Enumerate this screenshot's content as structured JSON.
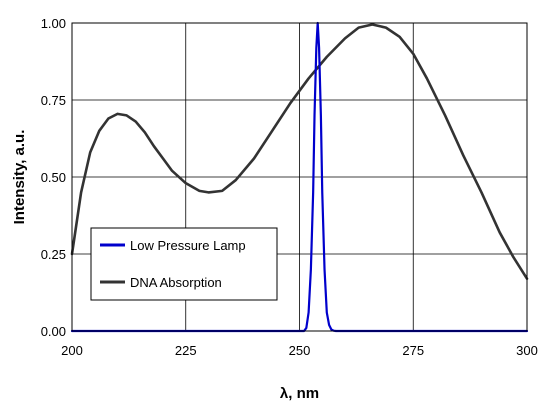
{
  "chart_data": {
    "type": "line",
    "title": "",
    "xlabel": "λ, nm",
    "ylabel": "Intensity, a.u.",
    "xlim": [
      200,
      300
    ],
    "ylim": [
      0,
      1
    ],
    "xticks": [
      "200",
      "225",
      "250",
      "275",
      "300"
    ],
    "yticks": [
      "0.00",
      "0.25",
      "0.50",
      "0.75",
      "1.00"
    ],
    "grid": true,
    "legend_position": "left",
    "series": [
      {
        "name": "Low Pressure Lamp",
        "color": "#0000cc",
        "x": [
          200,
          251,
          251.5,
          252,
          252.5,
          253,
          253.3,
          253.7,
          254,
          254.3,
          254.7,
          255,
          255.5,
          256,
          256.5,
          257,
          257.5,
          258,
          300
        ],
        "y": [
          0,
          0,
          0.01,
          0.06,
          0.2,
          0.45,
          0.7,
          0.92,
          1.0,
          0.92,
          0.7,
          0.45,
          0.2,
          0.06,
          0.02,
          0.005,
          0.001,
          0,
          0
        ]
      },
      {
        "name": "DNA Absorption",
        "color": "#333333",
        "x": [
          200,
          202,
          204,
          206,
          208,
          210,
          212,
          214,
          216,
          218,
          220,
          222,
          225,
          228,
          230,
          233,
          236,
          240,
          244,
          248,
          252,
          256,
          260,
          263,
          266,
          269,
          272,
          275,
          278,
          282,
          286,
          290,
          294,
          297,
          300
        ],
        "y": [
          0.25,
          0.45,
          0.58,
          0.65,
          0.69,
          0.705,
          0.7,
          0.68,
          0.645,
          0.6,
          0.56,
          0.52,
          0.48,
          0.455,
          0.45,
          0.455,
          0.49,
          0.56,
          0.65,
          0.74,
          0.82,
          0.89,
          0.95,
          0.985,
          0.995,
          0.985,
          0.955,
          0.9,
          0.82,
          0.7,
          0.57,
          0.45,
          0.32,
          0.24,
          0.17
        ]
      }
    ]
  }
}
